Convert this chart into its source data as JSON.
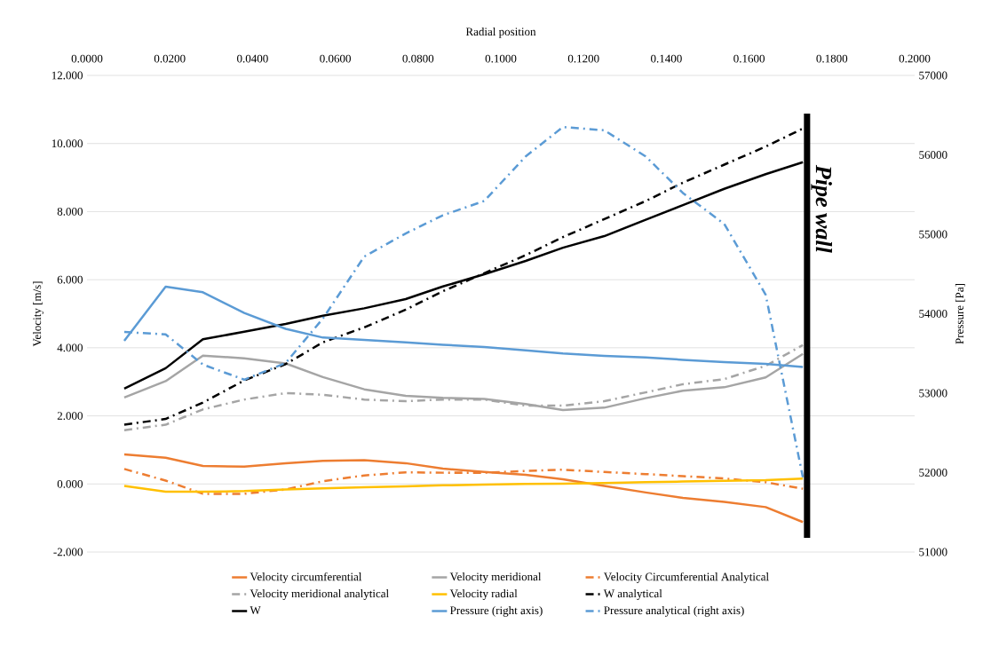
{
  "chart_data": {
    "type": "line",
    "xlabel": "Radial position",
    "ylabel": "Velocity [m/s]",
    "y2label": "Pressure [Pa]",
    "x": [
      0.009,
      0.019,
      0.028,
      0.038,
      0.048,
      0.057,
      0.067,
      0.077,
      0.086,
      0.096,
      0.106,
      0.115,
      0.125,
      0.135,
      0.144,
      0.154,
      0.164,
      0.173
    ],
    "xlim": [
      0,
      0.2
    ],
    "xticks": [
      {
        "value": 0,
        "label": "0.0000"
      },
      {
        "value": 0.02,
        "label": "0.0200"
      },
      {
        "value": 0.04,
        "label": "0.0400"
      },
      {
        "value": 0.06,
        "label": "0.0600"
      },
      {
        "value": 0.08,
        "label": "0.0800"
      },
      {
        "value": 0.1,
        "label": "0.1000"
      },
      {
        "value": 0.12,
        "label": "0.1200"
      },
      {
        "value": 0.14,
        "label": "0.1400"
      },
      {
        "value": 0.16,
        "label": "0.1600"
      },
      {
        "value": 0.18,
        "label": "0.1800"
      },
      {
        "value": 0.2,
        "label": "0.2000"
      }
    ],
    "ylim": [
      -2,
      12
    ],
    "yticks": [
      {
        "value": -2,
        "label": "-2.000"
      },
      {
        "value": 0,
        "label": "0.000"
      },
      {
        "value": 2,
        "label": "2.000"
      },
      {
        "value": 4,
        "label": "4.000"
      },
      {
        "value": 6,
        "label": "6.000"
      },
      {
        "value": 8,
        "label": "8.000"
      },
      {
        "value": 10,
        "label": "10.000"
      },
      {
        "value": 12,
        "label": "12.000"
      }
    ],
    "y2lim": [
      51000,
      57000
    ],
    "y2ticks": [
      51000,
      52000,
      53000,
      54000,
      55000,
      56000,
      57000
    ],
    "grid": "y",
    "legend": "bottom",
    "series": [
      {
        "name": "Velocity circumferential",
        "color": "#ed7d31",
        "line_style": "solid",
        "values": [
          0.87,
          0.77,
          0.53,
          0.51,
          0.61,
          0.68,
          0.7,
          0.61,
          0.45,
          0.35,
          0.27,
          0.14,
          -0.06,
          -0.25,
          -0.41,
          -0.53,
          -0.68,
          -1.12
        ]
      },
      {
        "name": "Velocity meridional",
        "color": "#a5a5a5",
        "line_style": "solid",
        "values": [
          2.54,
          3.02,
          3.77,
          3.69,
          3.54,
          3.14,
          2.78,
          2.59,
          2.53,
          2.5,
          2.35,
          2.17,
          2.24,
          2.52,
          2.74,
          2.84,
          3.13,
          3.82
        ]
      },
      {
        "name": "Velocity Circumferential Analytical",
        "color": "#ed7d31",
        "line_style": "dashdot",
        "values": [
          0.44,
          0.1,
          -0.29,
          -0.29,
          -0.16,
          0.08,
          0.25,
          0.34,
          0.33,
          0.33,
          0.38,
          0.42,
          0.35,
          0.29,
          0.23,
          0.16,
          0.05,
          -0.14
        ]
      },
      {
        "name": "Velocity meridional analytical",
        "color": "#a5a5a5",
        "line_style": "dashdot",
        "values": [
          1.58,
          1.74,
          2.19,
          2.48,
          2.67,
          2.62,
          2.48,
          2.43,
          2.48,
          2.48,
          2.3,
          2.3,
          2.43,
          2.69,
          2.93,
          3.08,
          3.47,
          4.08
        ]
      },
      {
        "name": "Velocity radial",
        "color": "#ffc000",
        "line_style": "solid",
        "values": [
          -0.06,
          -0.23,
          -0.23,
          -0.21,
          -0.16,
          -0.13,
          -0.1,
          -0.07,
          -0.04,
          -0.02,
          0.0,
          0.01,
          0.03,
          0.05,
          0.07,
          0.09,
          0.11,
          0.16
        ]
      },
      {
        "name": "W analytical",
        "color": "#000000",
        "line_style": "dashdot",
        "values": [
          1.74,
          1.91,
          2.39,
          3.04,
          3.52,
          4.16,
          4.6,
          5.12,
          5.66,
          6.19,
          6.72,
          7.25,
          7.78,
          8.31,
          8.85,
          9.38,
          9.91,
          10.44
        ]
      },
      {
        "name": "W",
        "color": "#000000",
        "line_style": "solid",
        "values": [
          2.8,
          3.4,
          4.25,
          4.47,
          4.7,
          4.94,
          5.16,
          5.43,
          5.8,
          6.16,
          6.55,
          6.94,
          7.28,
          7.76,
          8.19,
          8.67,
          9.1,
          9.45
        ]
      },
      {
        "name": "Pressure (right axis)",
        "color": "#5b9bd5",
        "line_style": "solid",
        "axis": "y2",
        "values": [
          53660,
          54340,
          54270,
          54010,
          53810,
          53700,
          53670,
          53640,
          53610,
          53580,
          53540,
          53500,
          53470,
          53450,
          53420,
          53390,
          53370,
          53330
        ]
      },
      {
        "name": "Pressure analytical (right axis)",
        "color": "#5b9bd5",
        "line_style": "dashdot",
        "axis": "y2",
        "values": [
          53770,
          53740,
          53360,
          53170,
          53380,
          53940,
          54720,
          55010,
          55240,
          55420,
          55980,
          56350,
          56310,
          55980,
          55520,
          55130,
          54240,
          51940
        ]
      }
    ],
    "ref_lines": [
      {
        "axis": "x",
        "value": 0.174,
        "label": "Pipe wall",
        "color": "#000000"
      }
    ]
  }
}
